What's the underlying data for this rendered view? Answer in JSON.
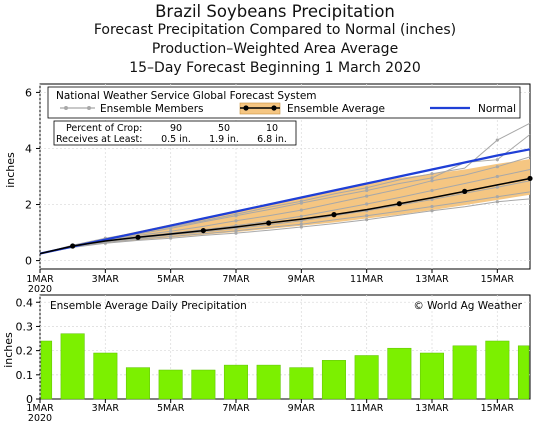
{
  "header": {
    "title": "Brazil Soybeans Precipitation",
    "subtitle_1": "Forecast Precipitation Compared to Normal (inches)",
    "subtitle_2": "Production–Weighted Area Average",
    "subtitle_3": "15–Day Forecast Beginning 1 March 2020"
  },
  "colors": {
    "normal": "#1f3fd6",
    "ensemble_average": "#000000",
    "ensemble_members": "#a8a8a8",
    "spread_fill": "#f5c682",
    "daily_bar": "#7cf000",
    "daily_bar_edge": "#5cc000"
  },
  "chart_data": [
    {
      "type": "line",
      "source_label": "National Weather Service Global Forecast System",
      "ylabel": "inches",
      "ylim": [
        -0.3,
        6.3
      ],
      "yticks": [
        0,
        2,
        4,
        6
      ],
      "xlim": [
        1,
        16
      ],
      "xticks": [
        {
          "x": 1,
          "label": "1MAR",
          "sublabel": "2020"
        },
        {
          "x": 3,
          "label": "3MAR"
        },
        {
          "x": 5,
          "label": "5MAR"
        },
        {
          "x": 7,
          "label": "7MAR"
        },
        {
          "x": 9,
          "label": "9MAR"
        },
        {
          "x": 11,
          "label": "11MAR"
        },
        {
          "x": 13,
          "label": "13MAR"
        },
        {
          "x": 15,
          "label": "15MAR"
        }
      ],
      "legend": {
        "placement": "top",
        "members_label": "Ensemble Members",
        "average_label": "Ensemble Average",
        "normal_label": "Normal"
      },
      "crop_table": {
        "row1_label": "Percent of Crop:",
        "row2_label": "Receives at Least:",
        "percents": [
          "90",
          "50",
          "10"
        ],
        "amounts": [
          "0.5 in.",
          "1.9 in.",
          "6.8 in."
        ]
      },
      "x": [
        1,
        2,
        3,
        4,
        5,
        6,
        7,
        8,
        9,
        10,
        11,
        12,
        13,
        14,
        15,
        16
      ],
      "normal": [
        0.25,
        0.5,
        0.75,
        1.0,
        1.25,
        1.5,
        1.75,
        2.0,
        2.25,
        2.5,
        2.75,
        3.0,
        3.25,
        3.5,
        3.75,
        3.97
      ],
      "ensemble_average": [
        0.25,
        0.52,
        0.7,
        0.83,
        0.95,
        1.07,
        1.2,
        1.34,
        1.48,
        1.64,
        1.82,
        2.03,
        2.24,
        2.47,
        2.7,
        2.93
      ],
      "spread_upper": [
        0.26,
        0.56,
        0.8,
        1.04,
        1.29,
        1.52,
        1.76,
        2.0,
        2.24,
        2.48,
        2.72,
        2.95,
        3.1,
        3.25,
        3.45,
        3.62
      ],
      "spread_lower": [
        0.24,
        0.48,
        0.63,
        0.73,
        0.82,
        0.92,
        1.02,
        1.13,
        1.24,
        1.36,
        1.5,
        1.64,
        1.8,
        1.98,
        2.16,
        2.35
      ],
      "ensemble_members": [
        [
          0.25,
          0.55,
          0.8,
          1.0,
          1.2,
          1.42,
          1.65,
          1.9,
          2.12,
          2.38,
          2.6,
          2.88,
          3.1,
          3.3,
          4.3,
          4.9
        ],
        [
          0.25,
          0.54,
          0.75,
          0.95,
          1.15,
          1.38,
          1.6,
          1.82,
          2.05,
          2.28,
          2.5,
          2.75,
          2.95,
          3.5,
          3.6,
          4.5
        ],
        [
          0.25,
          0.5,
          0.72,
          0.9,
          1.05,
          1.22,
          1.42,
          1.6,
          1.8,
          2.05,
          2.3,
          2.55,
          2.85,
          3.05,
          3.35,
          3.7
        ],
        [
          0.25,
          0.52,
          0.7,
          0.85,
          0.98,
          1.1,
          1.25,
          1.4,
          1.58,
          1.8,
          2.02,
          2.25,
          2.5,
          2.75,
          3.0,
          3.25
        ],
        [
          0.25,
          0.5,
          0.68,
          0.8,
          0.92,
          1.02,
          1.15,
          1.28,
          1.42,
          1.6,
          1.78,
          1.98,
          2.18,
          2.4,
          2.62,
          2.85
        ],
        [
          0.25,
          0.48,
          0.65,
          0.76,
          0.86,
          0.96,
          1.06,
          1.18,
          1.3,
          1.45,
          1.6,
          1.76,
          1.93,
          2.1,
          2.28,
          2.45
        ],
        [
          0.25,
          0.47,
          0.62,
          0.72,
          0.8,
          0.9,
          0.98,
          1.08,
          1.2,
          1.32,
          1.46,
          1.62,
          1.78,
          1.92,
          2.1,
          2.2
        ]
      ]
    },
    {
      "type": "bar",
      "title": "Ensemble Average Daily Precipitation",
      "credit": "© World Ag Weather",
      "ylabel": "inches",
      "ylim": [
        0,
        0.43
      ],
      "yticks": [
        "0",
        "0.1",
        "0.2",
        "0.3",
        "0.4"
      ],
      "x": [
        1,
        2,
        3,
        4,
        5,
        6,
        7,
        8,
        9,
        10,
        11,
        12,
        13,
        14,
        15,
        16
      ],
      "values": [
        0.24,
        0.27,
        0.19,
        0.13,
        0.12,
        0.12,
        0.14,
        0.14,
        0.13,
        0.16,
        0.18,
        0.21,
        0.19,
        0.22,
        0.24,
        0.22
      ],
      "xticks": [
        {
          "x": 1,
          "label": "1MAR",
          "sublabel": "2020"
        },
        {
          "x": 3,
          "label": "3MAR"
        },
        {
          "x": 5,
          "label": "5MAR"
        },
        {
          "x": 7,
          "label": "7MAR"
        },
        {
          "x": 9,
          "label": "9MAR"
        },
        {
          "x": 11,
          "label": "11MAR"
        },
        {
          "x": 13,
          "label": "13MAR"
        },
        {
          "x": 15,
          "label": "15MAR"
        }
      ]
    }
  ]
}
